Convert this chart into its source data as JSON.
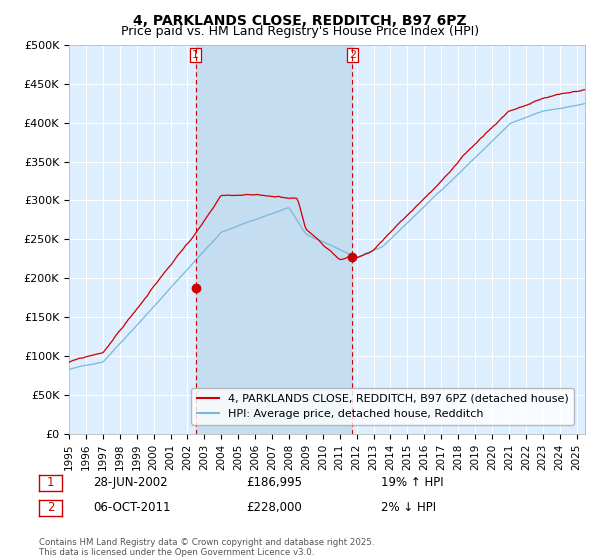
{
  "title": "4, PARKLANDS CLOSE, REDDITCH, B97 6PZ",
  "subtitle": "Price paid vs. HM Land Registry's House Price Index (HPI)",
  "ylabel_ticks": [
    "£0",
    "£50K",
    "£100K",
    "£150K",
    "£200K",
    "£250K",
    "£300K",
    "£350K",
    "£400K",
    "£450K",
    "£500K"
  ],
  "ylim": [
    0,
    500000
  ],
  "xlim_start": 1995.0,
  "xlim_end": 2025.5,
  "sale1_x": 2002.48,
  "sale1_y": 186995,
  "sale1_label": "1",
  "sale1_date": "28-JUN-2002",
  "sale1_price": "£186,995",
  "sale1_hpi": "19% ↑ HPI",
  "sale2_x": 2011.75,
  "sale2_y": 228000,
  "sale2_label": "2",
  "sale2_date": "06-OCT-2011",
  "sale2_price": "£228,000",
  "sale2_hpi": "2% ↓ HPI",
  "legend_line1": "4, PARKLANDS CLOSE, REDDITCH, B97 6PZ (detached house)",
  "legend_line2": "HPI: Average price, detached house, Redditch",
  "copyright_text": "Contains HM Land Registry data © Crown copyright and database right 2025.\nThis data is licensed under the Open Government Licence v3.0.",
  "hpi_color": "#7ab8d9",
  "price_color": "#cc0000",
  "sale_marker_color": "#cc0000",
  "bg_color": "#ddeeff",
  "shade_color": "#c5ddf0",
  "grid_color": "#ffffff",
  "title_fontsize": 10,
  "subtitle_fontsize": 9,
  "tick_fontsize": 8,
  "legend_fontsize": 8,
  "annotation_fontsize": 8
}
